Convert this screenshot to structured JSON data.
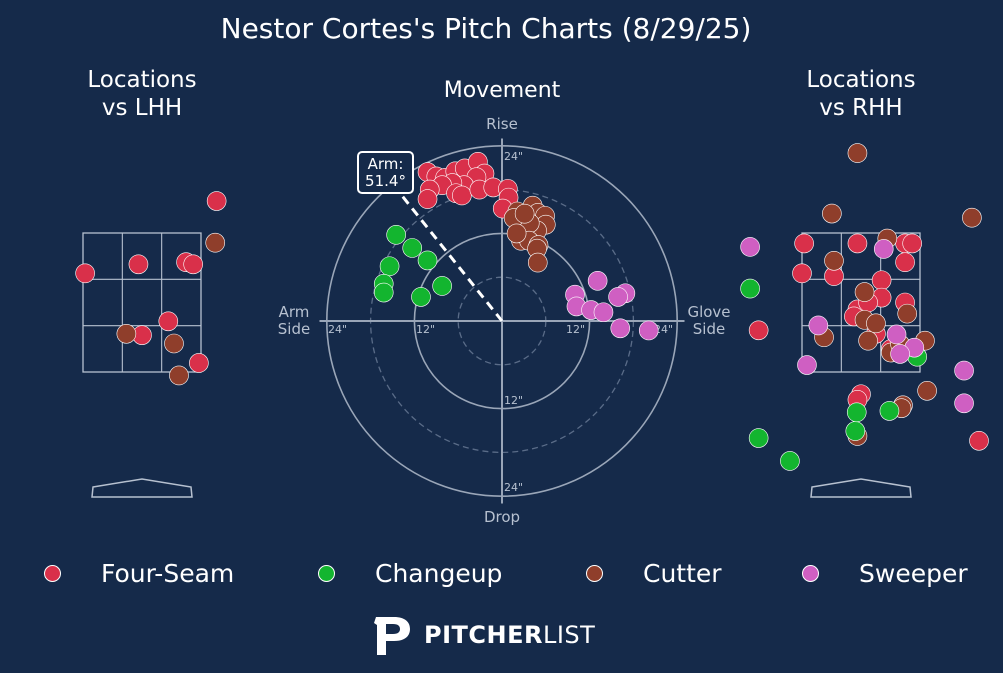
{
  "title": "Nestor Cortes's Pitch Charts (8/29/25)",
  "colors": {
    "background": "#152a4a",
    "Four-Seam": "#d9304a",
    "Changeup": "#13b52f",
    "Cutter": "#8f3e2b",
    "Sweeper": "#cf5fc2",
    "grid": "#b7c1d0"
  },
  "legend": [
    {
      "name": "Four-Seam",
      "color": "#d9304a"
    },
    {
      "name": "Changeup",
      "color": "#13b52f"
    },
    {
      "name": "Cutter",
      "color": "#8f3e2b"
    },
    {
      "name": "Sweeper",
      "color": "#cf5fc2"
    }
  ],
  "brand": {
    "bold": "PITCHER",
    "light": "LIST",
    "logo_icon": "pitcherlist-p-icon"
  },
  "chart_data": [
    {
      "type": "scatter",
      "title": "Locations\nvs LHH",
      "title_lines": [
        "Locations",
        "vs LHH"
      ],
      "x_range": [
        -1.6,
        1.6
      ],
      "y_range": [
        0.0,
        4.7
      ],
      "strike_zone": {
        "x": [
          -0.83,
          0.83
        ],
        "y": [
          1.5,
          3.5
        ]
      },
      "series": [
        {
          "name": "Four-Seam",
          "points": [
            [
              -0.8,
              2.92
            ],
            [
              -0.05,
              3.05
            ],
            [
              0.62,
              3.08
            ],
            [
              0.72,
              3.05
            ],
            [
              1.05,
              3.96
            ],
            [
              0.37,
              2.23
            ],
            [
              0.0,
              2.03
            ],
            [
              0.8,
              1.63
            ]
          ]
        },
        {
          "name": "Cutter",
          "points": [
            [
              1.03,
              3.36
            ],
            [
              -0.22,
              2.05
            ],
            [
              0.45,
              1.91
            ],
            [
              0.52,
              1.45
            ]
          ]
        }
      ]
    },
    {
      "type": "scatter",
      "subtype": "polar-movement",
      "title": "Movement",
      "axis_labels": {
        "top": "Rise",
        "bottom": "Drop",
        "left": "Arm\nSide",
        "right": "Glove\nSide"
      },
      "axis_label_lines": {
        "left": [
          "Arm",
          "Side"
        ],
        "right": [
          "Glove",
          "Side"
        ]
      },
      "ring_labels": {
        "top": "24\"",
        "inner_top": "12\"",
        "inner_bottom": "12\"",
        "bottom": "24\"",
        "left_outer": "24\"",
        "left_inner": "12\"",
        "right_inner": "12\"",
        "right_outer": "24\""
      },
      "rings_inches": [
        6,
        12,
        18,
        24
      ],
      "arm_angle": {
        "label": "Arm:\n51.4°",
        "label_lines": [
          "Arm:",
          "51.4°"
        ],
        "degrees": 51.4
      },
      "units": "inches",
      "series": [
        {
          "name": "Four-Seam",
          "points": [
            [
              -10.2,
              20.4
            ],
            [
              -9.0,
              19.8
            ],
            [
              -7.8,
              19.6
            ],
            [
              -6.4,
              20.5
            ],
            [
              -5.1,
              20.9
            ],
            [
              -3.3,
              21.8
            ],
            [
              -2.4,
              20.2
            ],
            [
              -3.5,
              19.7
            ],
            [
              -5.2,
              18.6
            ],
            [
              -6.8,
              18.9
            ],
            [
              -8.2,
              18.6
            ],
            [
              -9.9,
              18.0
            ],
            [
              -10.2,
              16.7
            ],
            [
              -6.3,
              17.5
            ],
            [
              -5.5,
              17.2
            ],
            [
              -3.1,
              18.0
            ],
            [
              -1.2,
              18.3
            ],
            [
              0.8,
              18.1
            ],
            [
              0.9,
              16.9
            ],
            [
              0.1,
              15.4
            ]
          ]
        },
        {
          "name": "Cutter",
          "points": [
            [
              2.1,
              15.0
            ],
            [
              4.2,
              15.8
            ],
            [
              4.9,
              14.8
            ],
            [
              5.9,
              14.4
            ],
            [
              6.0,
              13.2
            ],
            [
              4.8,
              12.4
            ],
            [
              3.8,
              13.4
            ],
            [
              2.6,
              11.0
            ],
            [
              3.7,
              11.0
            ],
            [
              5.0,
              10.4
            ],
            [
              4.8,
              9.9
            ],
            [
              4.9,
              8.0
            ],
            [
              1.6,
              14.1
            ],
            [
              3.1,
              14.7
            ],
            [
              2.0,
              12.0
            ]
          ]
        },
        {
          "name": "Changeup",
          "points": [
            [
              -14.5,
              11.8
            ],
            [
              -12.3,
              10.0
            ],
            [
              -10.2,
              8.3
            ],
            [
              -15.4,
              7.5
            ],
            [
              -16.2,
              5.1
            ],
            [
              -16.2,
              3.9
            ],
            [
              -11.1,
              3.3
            ],
            [
              -8.2,
              4.8
            ]
          ]
        },
        {
          "name": "Sweeper",
          "points": [
            [
              13.1,
              5.5
            ],
            [
              10.0,
              3.6
            ],
            [
              10.2,
              2.0
            ],
            [
              12.2,
              1.5
            ],
            [
              13.9,
              1.2
            ],
            [
              16.9,
              3.8
            ],
            [
              15.9,
              3.3
            ],
            [
              16.2,
              -1.0
            ],
            [
              20.1,
              -1.3
            ]
          ]
        }
      ]
    },
    {
      "type": "scatter",
      "title": "Locations\nvs RHH",
      "title_lines": [
        "Locations",
        "vs RHH"
      ],
      "x_range": [
        -1.6,
        1.6
      ],
      "y_range": [
        0.0,
        4.7
      ],
      "strike_zone": {
        "x": [
          -0.83,
          0.83
        ],
        "y": [
          1.5,
          3.5
        ]
      },
      "series": [
        {
          "name": "Four-Seam",
          "points": [
            [
              -0.8,
              3.35
            ],
            [
              -0.05,
              3.35
            ],
            [
              0.62,
              3.35
            ],
            [
              0.72,
              3.35
            ],
            [
              0.62,
              3.08
            ],
            [
              -0.83,
              2.92
            ],
            [
              -0.38,
              2.88
            ],
            [
              0.29,
              2.82
            ],
            [
              0.29,
              2.57
            ],
            [
              0.62,
              2.5
            ],
            [
              -0.05,
              2.4
            ],
            [
              -0.1,
              2.3
            ],
            [
              0.21,
              2.05
            ],
            [
              0.42,
              1.83
            ],
            [
              0.0,
              1.18
            ],
            [
              0.62,
              1.83
            ],
            [
              -1.44,
              2.1
            ],
            [
              0.1,
              2.5
            ],
            [
              1.66,
              0.51
            ],
            [
              -0.05,
              1.1
            ]
          ]
        },
        {
          "name": "Cutter",
          "points": [
            [
              -0.05,
              4.65
            ],
            [
              -0.41,
              3.78
            ],
            [
              1.56,
              3.72
            ],
            [
              0.37,
              3.42
            ],
            [
              -0.38,
              3.1
            ],
            [
              0.05,
              2.25
            ],
            [
              0.65,
              2.34
            ],
            [
              0.9,
              1.95
            ],
            [
              0.1,
              1.95
            ],
            [
              0.42,
              1.78
            ],
            [
              0.55,
              1.9
            ],
            [
              0.59,
              1.02
            ],
            [
              0.21,
              2.2
            ],
            [
              -0.52,
              2.0
            ],
            [
              0.05,
              2.65
            ],
            [
              0.93,
              1.23
            ],
            [
              0.57,
              0.98
            ],
            [
              -0.05,
              0.58
            ]
          ]
        },
        {
          "name": "Changeup",
          "points": [
            [
              -0.08,
              0.65
            ],
            [
              0.4,
              0.94
            ],
            [
              -0.06,
              0.92
            ],
            [
              -1.56,
              2.7
            ],
            [
              -1.44,
              0.55
            ],
            [
              -1.0,
              0.22
            ],
            [
              0.79,
              1.72
            ]
          ]
        },
        {
          "name": "Sweeper",
          "points": [
            [
              -0.6,
              2.17
            ],
            [
              0.5,
              2.04
            ],
            [
              -1.56,
              3.3
            ],
            [
              0.32,
              3.27
            ],
            [
              -0.76,
              1.6
            ],
            [
              0.75,
              1.85
            ],
            [
              0.55,
              1.76
            ],
            [
              1.45,
              1.05
            ],
            [
              1.45,
              1.52
            ]
          ]
        }
      ]
    }
  ]
}
